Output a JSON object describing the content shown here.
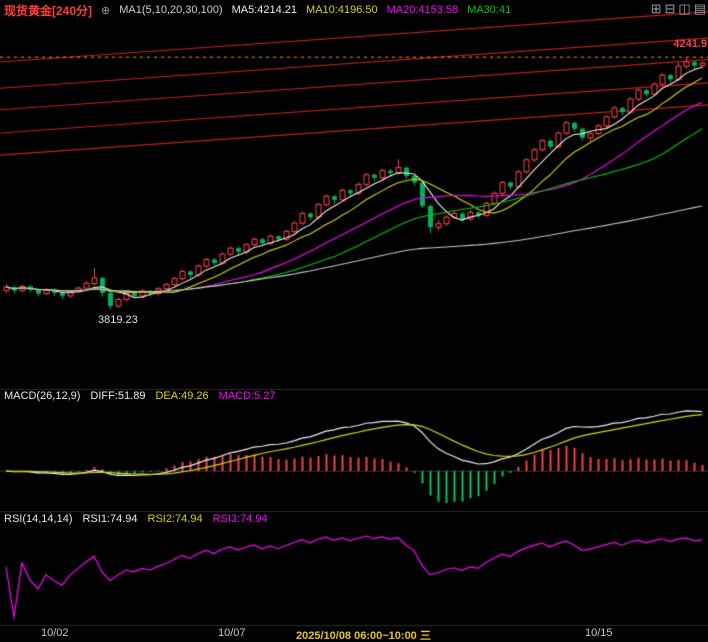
{
  "header": {
    "symbol": "现货黄金",
    "period": "[240分]",
    "ma_group_label": "MA1(5,10,20,30,100)",
    "ma5": "MA5:4214.21",
    "ma10": "MA10:4196.50",
    "ma20": "MA20:4153.58",
    "ma30": "MA30:41"
  },
  "icons": {
    "add_overlay": "⊕",
    "grid_layout": "⊞",
    "split_layout": "⊟",
    "multi_window": "◫",
    "list_panel": "▤"
  },
  "main_chart": {
    "high_label": "4241.9",
    "low_label": "3819.23"
  },
  "macd_panel": {
    "title": "MACD(26,12,9)",
    "diff": "DIFF:51.89",
    "dea": "DEA:49.26",
    "macd": "MACD:5.27"
  },
  "rsi_panel": {
    "title": "RSI(14,14,14)",
    "rsi1": "RSI1:74.94",
    "rsi2": "RSI2:74.94",
    "rsi3": "RSI3:74.94"
  },
  "x_axis": {
    "labels": [
      "10/02",
      "10/07",
      "2025/10/08 06:00~10:00 三",
      "10/15"
    ]
  },
  "colors": {
    "up": "#ff4242",
    "down": "#00b259",
    "ma5": "#ececec",
    "ma10": "#d6d600",
    "ma20": "#ff00ff",
    "ma30": "#00c800",
    "ma100": "#c4c4c4",
    "trend": "#c41e1e",
    "high_line": "#ff9800",
    "symbol": "#ff3c3c",
    "axis_text": "#c8c8c8",
    "axis_highlight": "#e6c417",
    "label_white": "#e8e8e8",
    "diff": "#ececec",
    "dea": "#d6d600",
    "macd": "#ff00ff",
    "rsi": "#ff00ff",
    "hist_pos": "#ff4242",
    "hist_neg": "#00c864"
  },
  "chart_data": {
    "type": "candlestick",
    "title": "现货黄金 240分 K线",
    "legend": [
      "MA5",
      "MA10",
      "MA20",
      "MA30",
      "MA100"
    ],
    "main": {
      "ylim": [
        3690,
        4290
      ],
      "high_line_price": 4241.9,
      "low_annotation_price": 3819.2,
      "ma_periods": [
        5,
        10,
        20,
        30,
        100
      ],
      "trend_lines": [
        [
          4233,
          4317
        ],
        [
          4189,
          4273
        ],
        [
          4153,
          4237
        ],
        [
          4114,
          4198
        ],
        [
          4077,
          4161
        ]
      ],
      "candles": [
        [
          3850,
          3861,
          3846,
          3856
        ],
        [
          3856,
          3858,
          3845,
          3850
        ],
        [
          3850,
          3860,
          3847,
          3857
        ],
        [
          3857,
          3859,
          3847,
          3851
        ],
        [
          3851,
          3853,
          3840,
          3845
        ],
        [
          3845,
          3854,
          3842,
          3851
        ],
        [
          3851,
          3853,
          3841,
          3846
        ],
        [
          3846,
          3849,
          3836,
          3841
        ],
        [
          3841,
          3851,
          3838,
          3848
        ],
        [
          3848,
          3857,
          3845,
          3854
        ],
        [
          3854,
          3866,
          3851,
          3862
        ],
        [
          3862,
          3888,
          3858,
          3871
        ],
        [
          3871,
          3873,
          3840,
          3846
        ],
        [
          3846,
          3848,
          3819.2,
          3824
        ],
        [
          3824,
          3838,
          3821,
          3835
        ],
        [
          3835,
          3849,
          3832,
          3846
        ],
        [
          3846,
          3848,
          3837,
          3841
        ],
        [
          3841,
          3852,
          3838,
          3849
        ],
        [
          3849,
          3851,
          3840,
          3845
        ],
        [
          3845,
          3856,
          3842,
          3853
        ],
        [
          3853,
          3863,
          3850,
          3860
        ],
        [
          3860,
          3873,
          3857,
          3870
        ],
        [
          3870,
          3885,
          3867,
          3882
        ],
        [
          3882,
          3884,
          3871,
          3876
        ],
        [
          3876,
          3894,
          3873,
          3891
        ],
        [
          3891,
          3905,
          3888,
          3902
        ],
        [
          3902,
          3904,
          3891,
          3896
        ],
        [
          3896,
          3914,
          3893,
          3911
        ],
        [
          3911,
          3924,
          3908,
          3921
        ],
        [
          3921,
          3923,
          3910,
          3915
        ],
        [
          3915,
          3930,
          3912,
          3927
        ],
        [
          3927,
          3939,
          3924,
          3936
        ],
        [
          3936,
          3938,
          3924,
          3929
        ],
        [
          3929,
          3944,
          3926,
          3941
        ],
        [
          3941,
          3943,
          3931,
          3936
        ],
        [
          3936,
          3952,
          3933,
          3949
        ],
        [
          3949,
          3966,
          3946,
          3963
        ],
        [
          3963,
          3982,
          3960,
          3979
        ],
        [
          3979,
          3981,
          3968,
          3973
        ],
        [
          3973,
          3997,
          3970,
          3994
        ],
        [
          3994,
          4011,
          3991,
          4008
        ],
        [
          4008,
          4010,
          3996,
          4002
        ],
        [
          4002,
          4021,
          3999,
          4018
        ],
        [
          4018,
          4020,
          4007,
          4013
        ],
        [
          4013,
          4031,
          4010,
          4028
        ],
        [
          4028,
          4047,
          4025,
          4044
        ],
        [
          4044,
          4046,
          4033,
          4039
        ],
        [
          4039,
          4054,
          4036,
          4051
        ],
        [
          4051,
          4053,
          4041,
          4047
        ],
        [
          4047,
          4070,
          4044,
          4056
        ],
        [
          4056,
          4058,
          4037,
          4042
        ],
        [
          4042,
          4045,
          4026,
          4031
        ],
        [
          4031,
          4033,
          3988,
          3992
        ],
        [
          3992,
          3994,
          3946,
          3956
        ],
        [
          3956,
          3968,
          3951,
          3962
        ],
        [
          3962,
          3976,
          3958,
          3973
        ],
        [
          3973,
          3983,
          3970,
          3979
        ],
        [
          3979,
          3981,
          3965,
          3970
        ],
        [
          3970,
          3985,
          3967,
          3981
        ],
        [
          3981,
          3983,
          3971,
          3976
        ],
        [
          3976,
          3999,
          3973,
          3996
        ],
        [
          3996,
          4016,
          3993,
          4013
        ],
        [
          4013,
          4034,
          4010,
          4031
        ],
        [
          4031,
          4033,
          4019,
          4024
        ],
        [
          4024,
          4052,
          4021,
          4049
        ],
        [
          4049,
          4072,
          4046,
          4069
        ],
        [
          4069,
          4089,
          4066,
          4086
        ],
        [
          4086,
          4104,
          4083,
          4101
        ],
        [
          4101,
          4103,
          4086,
          4091
        ],
        [
          4091,
          4117,
          4088,
          4114
        ],
        [
          4114,
          4134,
          4111,
          4131
        ],
        [
          4131,
          4133,
          4116,
          4121
        ],
        [
          4121,
          4123,
          4101,
          4106
        ],
        [
          4106,
          4116,
          4101,
          4113
        ],
        [
          4113,
          4129,
          4110,
          4126
        ],
        [
          4126,
          4144,
          4123,
          4141
        ],
        [
          4141,
          4159,
          4138,
          4156
        ],
        [
          4156,
          4158,
          4144,
          4149
        ],
        [
          4149,
          4174,
          4146,
          4171
        ],
        [
          4171,
          4189,
          4168,
          4186
        ],
        [
          4186,
          4188,
          4174,
          4179
        ],
        [
          4179,
          4199,
          4176,
          4196
        ],
        [
          4196,
          4214,
          4193,
          4211
        ],
        [
          4211,
          4213,
          4199,
          4204
        ],
        [
          4204,
          4232,
          4201,
          4226
        ],
        [
          4226,
          4241.9,
          4222,
          4233
        ],
        [
          4233,
          4236,
          4221,
          4227
        ],
        [
          4227,
          4234,
          4222,
          4231
        ]
      ]
    },
    "macd": {
      "params": [
        26,
        12,
        9
      ],
      "diff": 51.89,
      "dea": 49.26,
      "macd": 5.27
    },
    "rsi": {
      "params": [
        14,
        14,
        14
      ],
      "rsi1": 74.94,
      "rsi2": 74.94,
      "rsi3": 74.94
    }
  }
}
